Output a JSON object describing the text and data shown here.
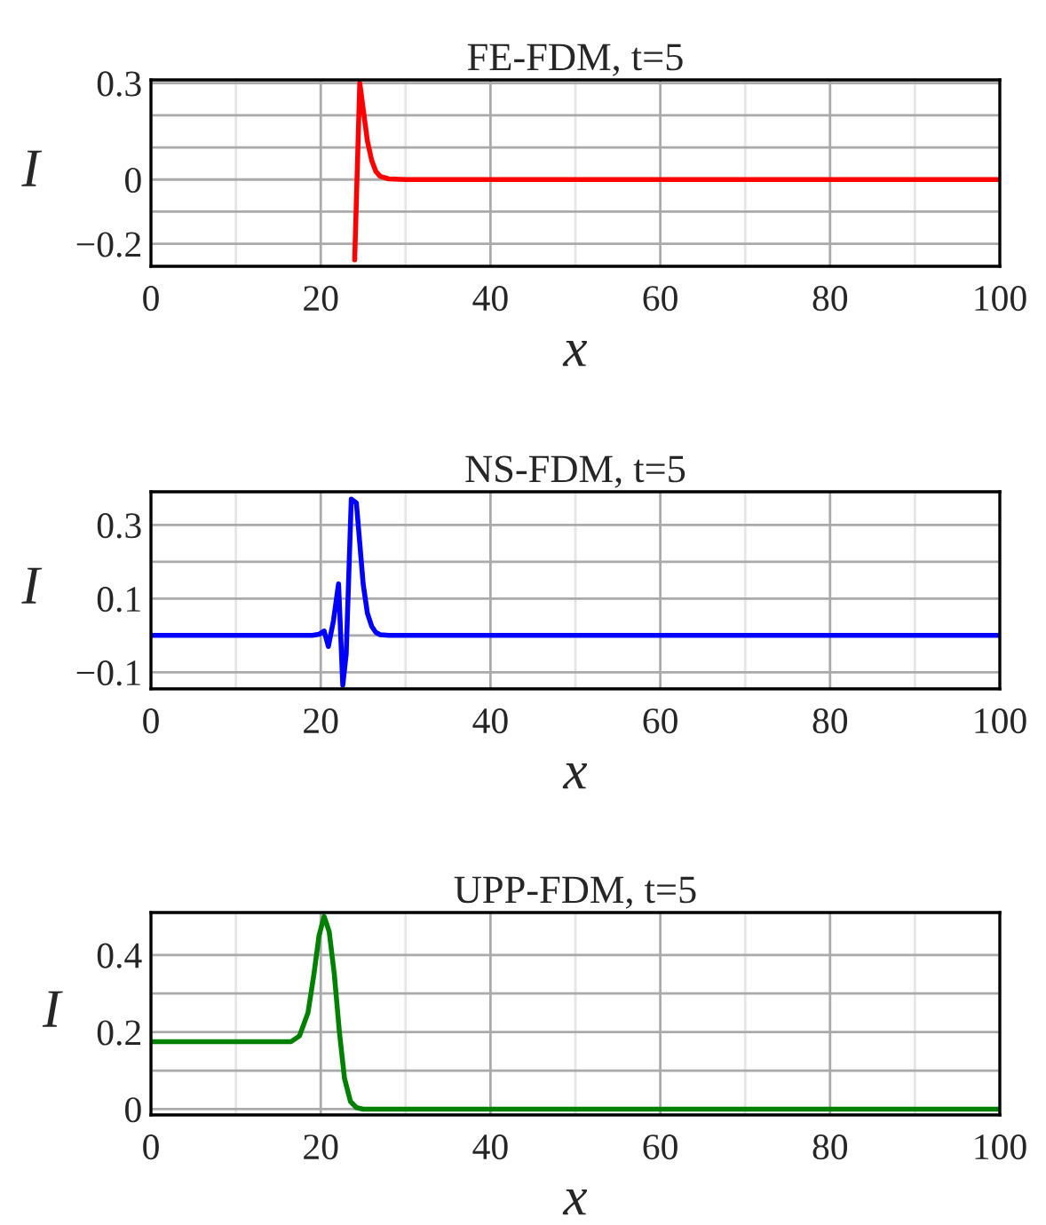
{
  "chart_data": [
    {
      "type": "line",
      "title": "FE-FDM, t=5",
      "xlabel": "x",
      "ylabel": "I",
      "xlim": [
        0,
        100
      ],
      "xticks": [
        0,
        20,
        40,
        60,
        80,
        100
      ],
      "ylim": [
        -0.27,
        0.31
      ],
      "yticks": [
        {
          "value": -0.2,
          "label": "−0.2"
        },
        {
          "value": -0.1,
          "label": null
        },
        0,
        {
          "value": 0.1,
          "label": null
        },
        {
          "value": 0.2,
          "label": null
        },
        0.3
      ],
      "grid": true,
      "marker": "none",
      "line_style": "solid",
      "series": [
        {
          "color": "#ff0000",
          "x": [
            24.0,
            24.6,
            25.0,
            25.5,
            26.0,
            26.5,
            27.0,
            28.0,
            30.0,
            50.0,
            100.0
          ],
          "values": [
            -0.25,
            0.3,
            0.22,
            0.12,
            0.06,
            0.025,
            0.01,
            0.002,
            0,
            0,
            0
          ]
        }
      ]
    },
    {
      "type": "line",
      "title": "NS-FDM, t=5",
      "xlabel": "x",
      "ylabel": "I",
      "xlim": [
        0,
        100
      ],
      "xticks": [
        0,
        20,
        40,
        60,
        80,
        100
      ],
      "ylim": [
        -0.145,
        0.39
      ],
      "yticks": [
        {
          "value": -0.1,
          "label": "−0.1"
        },
        {
          "value": 0,
          "label": null
        },
        0.1,
        {
          "value": 0.2,
          "label": null
        },
        0.3
      ],
      "grid": true,
      "marker": "none",
      "line_style": "solid",
      "series": [
        {
          "color": "#0000ff",
          "x": [
            0,
            19.0,
            19.8,
            20.4,
            20.9,
            21.5,
            22.1,
            22.6,
            23.0,
            23.6,
            24.2,
            24.6,
            25.0,
            25.5,
            26.0,
            26.5,
            27.0,
            28.0,
            50.0,
            100.0
          ],
          "values": [
            0,
            0,
            0.003,
            0.012,
            -0.03,
            0.04,
            0.14,
            -0.135,
            -0.05,
            0.37,
            0.36,
            0.25,
            0.14,
            0.06,
            0.025,
            0.008,
            0.002,
            0,
            0,
            0
          ]
        }
      ]
    },
    {
      "type": "line",
      "title": "UPP-FDM, t=5",
      "xlabel": "x",
      "ylabel": "I",
      "xlim": [
        0,
        100
      ],
      "xticks": [
        0,
        20,
        40,
        60,
        80,
        100
      ],
      "ylim": [
        -0.015,
        0.51
      ],
      "yticks": [
        0,
        {
          "value": 0.1,
          "label": null
        },
        0.2,
        {
          "value": 0.3,
          "label": null
        },
        0.4
      ],
      "grid": true,
      "marker": "none",
      "line_style": "solid",
      "series": [
        {
          "color": "#008000",
          "x": [
            0,
            16.5,
            17.5,
            18.5,
            19.2,
            19.8,
            20.4,
            21.0,
            21.6,
            22.2,
            22.8,
            23.5,
            24.2,
            25.0,
            50.0,
            100.0
          ],
          "values": [
            0.175,
            0.175,
            0.19,
            0.25,
            0.35,
            0.45,
            0.5,
            0.46,
            0.35,
            0.2,
            0.08,
            0.02,
            0.004,
            0,
            0,
            0
          ]
        }
      ]
    }
  ]
}
